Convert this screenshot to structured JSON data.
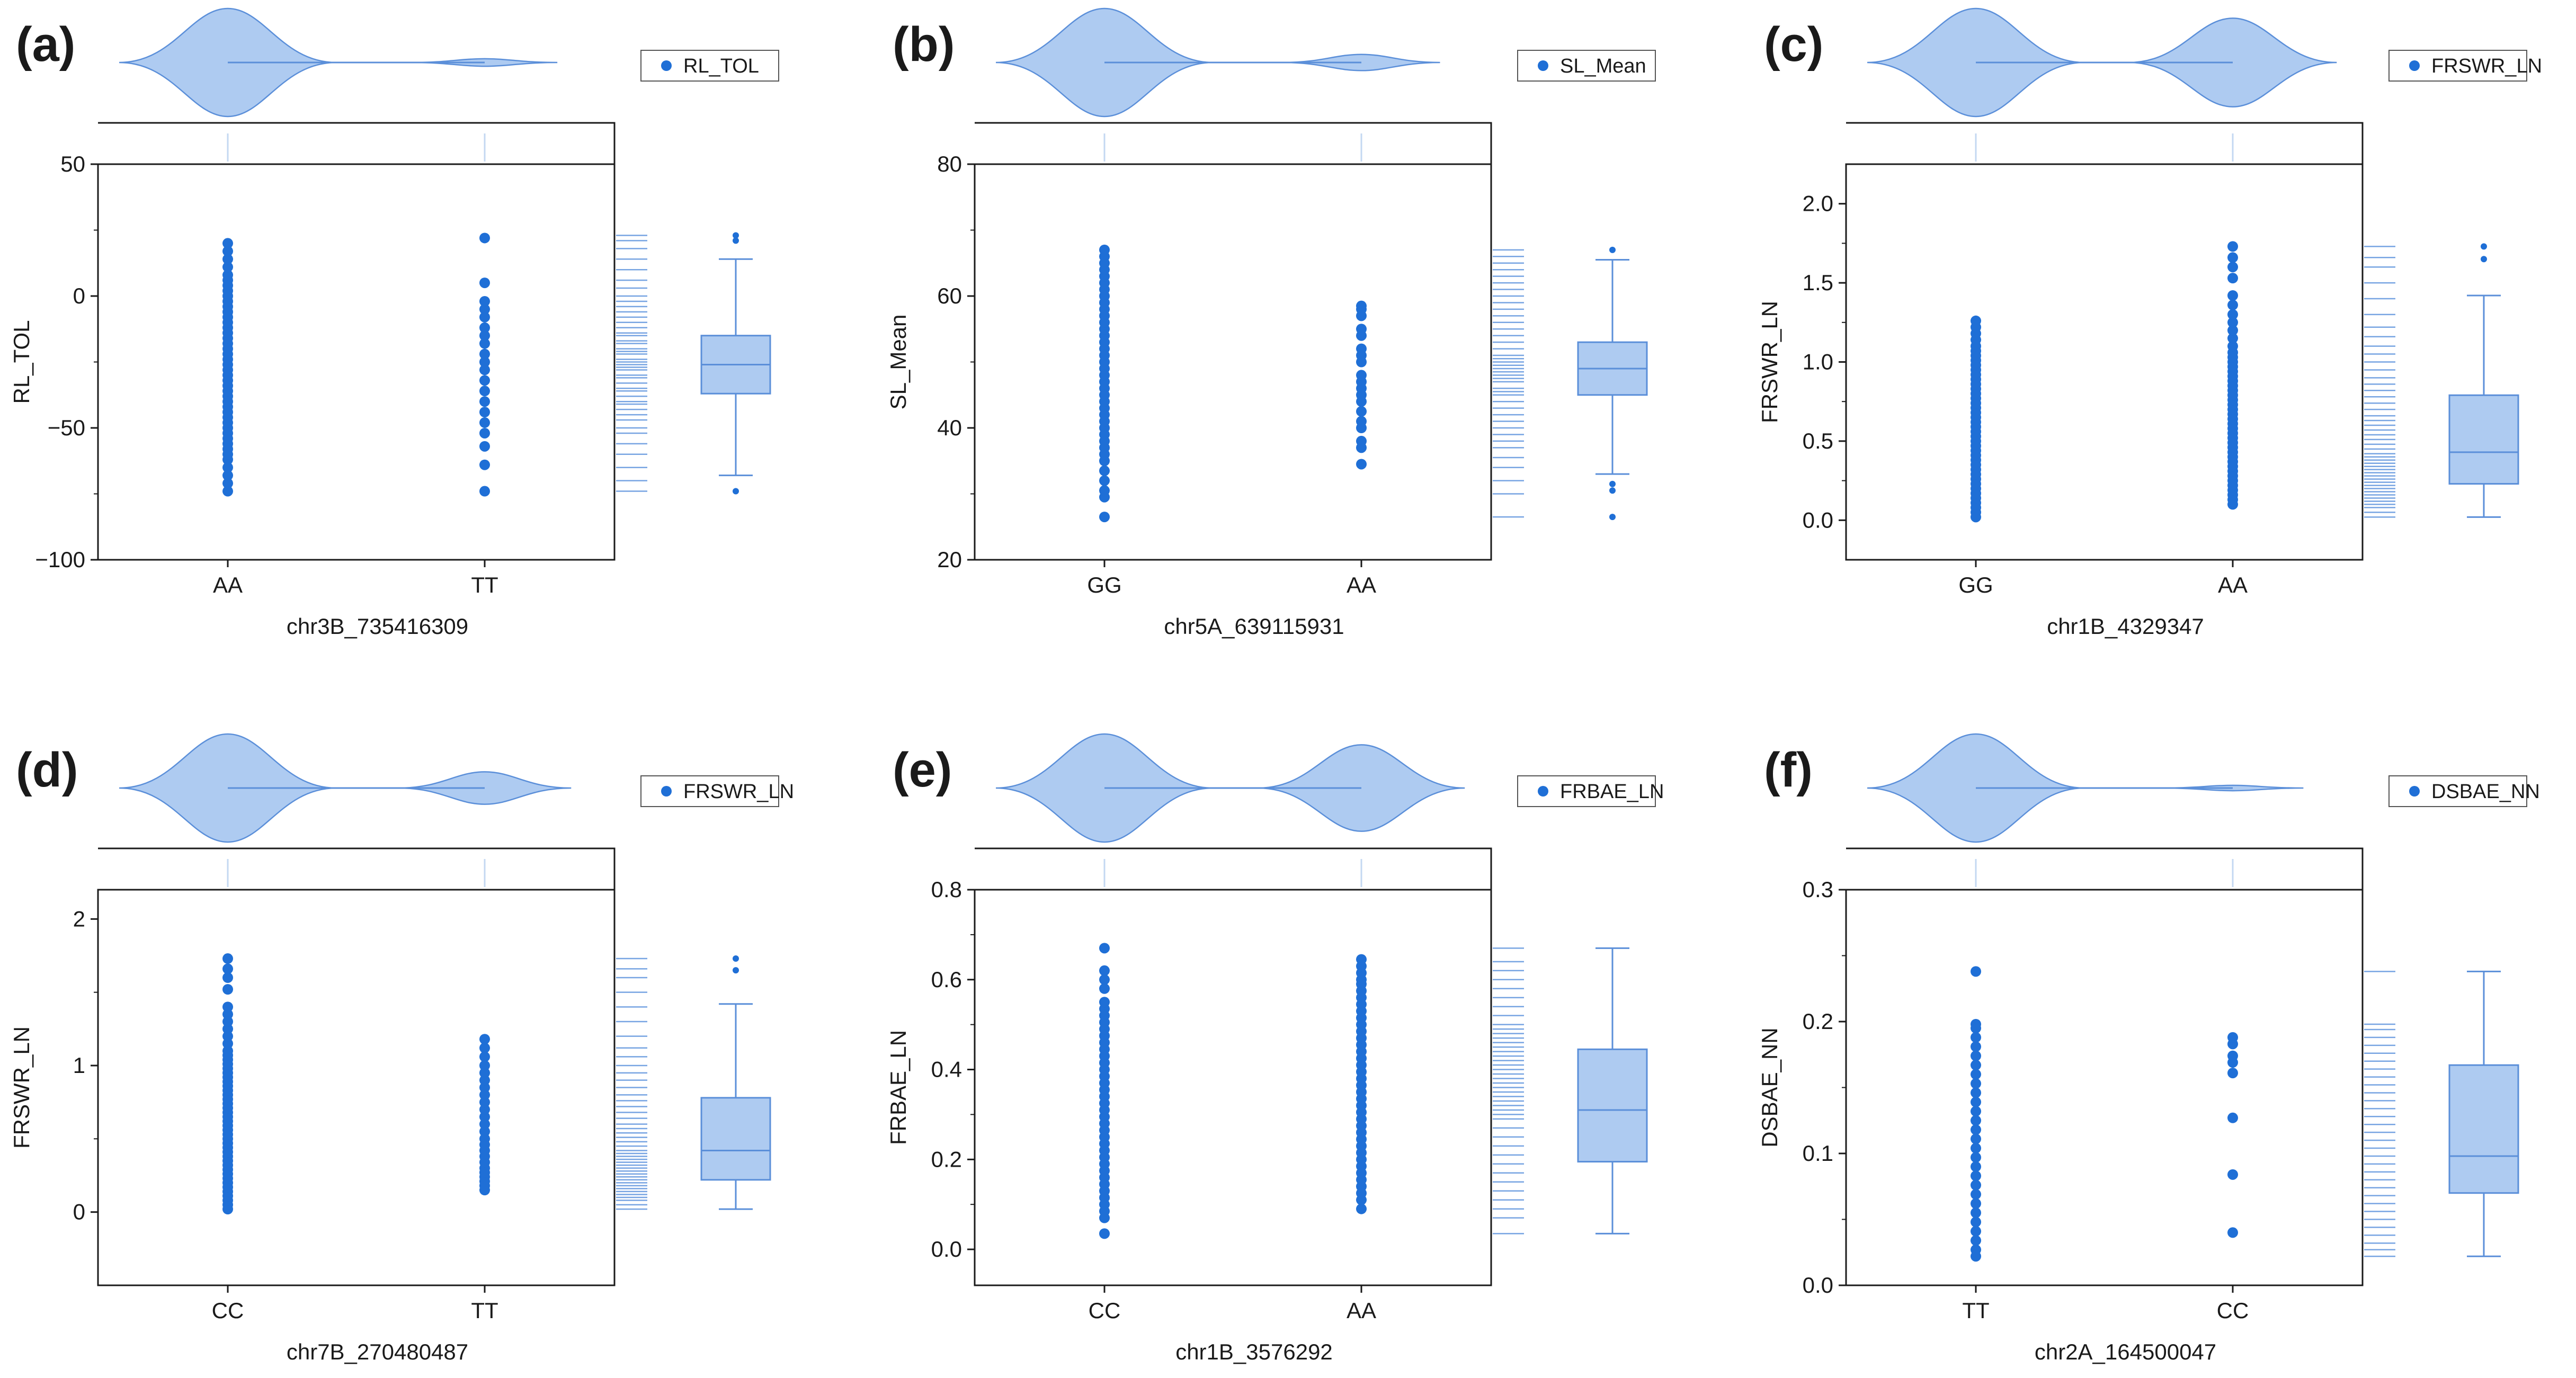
{
  "figure": {
    "colors": {
      "point": "#1f6fd6",
      "fill": "#aecbf1",
      "line": "#5b8fd9",
      "rug": "#4a86d8",
      "axis": "#1a1a1a",
      "tick_mark": "#c4d8f2"
    }
  },
  "chart_data": [
    {
      "type": "scatter",
      "panel": "(a)",
      "title": "",
      "xlabel": "chr3B_735416309",
      "ylabel": "RL_TOL",
      "legend": "RL_TOL",
      "legend_position": "top-right",
      "categories": [
        "AA",
        "TT"
      ],
      "ylim": [
        -100,
        50
      ],
      "yticks": [
        -100,
        -50,
        0,
        50
      ],
      "points": [
        [
          -74,
          -71,
          -68,
          -65,
          -62,
          -60,
          -58,
          -56,
          -54,
          -52,
          -50,
          -48,
          -46,
          -44,
          -42,
          -40,
          -38,
          -36,
          -34,
          -32,
          -30,
          -28,
          -26,
          -24,
          -22,
          -20,
          -18,
          -16,
          -14,
          -12,
          -10,
          -8,
          -6,
          -4,
          -2,
          0,
          2,
          4,
          6,
          8,
          11,
          14,
          17,
          20
        ],
        [
          -74,
          -64,
          -57,
          -52,
          -48,
          -44,
          -40,
          -36,
          -32,
          -28,
          -25,
          -22,
          -18,
          -15,
          -12,
          -8,
          -5,
          -2,
          5,
          22
        ]
      ],
      "violin": {
        "peaks": [
          1.0,
          0.07
        ]
      },
      "box": {
        "min": -68,
        "q1": -37,
        "median": -26,
        "q3": -15,
        "max": 14,
        "outliers": [
          -74,
          21,
          23
        ]
      },
      "rug": [
        -74,
        -70,
        -65,
        -60,
        -56,
        -52,
        -50,
        -47,
        -45,
        -43,
        -41,
        -40,
        -38,
        -36,
        -35,
        -33,
        -31,
        -30,
        -28,
        -27,
        -26,
        -25,
        -24,
        -22,
        -21,
        -20,
        -18,
        -17,
        -15,
        -14,
        -12,
        -10,
        -8,
        -6,
        -4,
        -2,
        0,
        3,
        6,
        10,
        14,
        18,
        21,
        23
      ]
    },
    {
      "type": "scatter",
      "panel": "(b)",
      "title": "",
      "xlabel": "chr5A_639115931",
      "ylabel": "SL_Mean",
      "legend": "SL_Mean",
      "legend_position": "top-right",
      "categories": [
        "GG",
        "AA"
      ],
      "ylim": [
        20,
        80
      ],
      "yticks": [
        20,
        40,
        60,
        80
      ],
      "points": [
        [
          26.5,
          29.5,
          30.5,
          32,
          33.5,
          35,
          36,
          37,
          38,
          39,
          40,
          41,
          42,
          43,
          44,
          45,
          46,
          47,
          48,
          49,
          50,
          51,
          52,
          53,
          54,
          55,
          56,
          57,
          58,
          59,
          60,
          61,
          62,
          63,
          64,
          65,
          66,
          67
        ],
        [
          34.5,
          37,
          38,
          40,
          41,
          42.5,
          44,
          45,
          46,
          47,
          48,
          50,
          51,
          52,
          54,
          55,
          57,
          58,
          58.5
        ]
      ],
      "violin": {
        "peaks": [
          1.0,
          0.15
        ]
      },
      "box": {
        "min": 33,
        "q1": 45,
        "median": 49,
        "q3": 53,
        "max": 65.5,
        "outliers": [
          26.5,
          30.5,
          31.5,
          67
        ]
      },
      "rug": [
        26.5,
        30,
        32,
        34,
        35.5,
        37,
        38,
        39,
        40,
        41,
        42,
        43,
        44,
        45,
        45.5,
        46,
        47,
        47.5,
        48,
        48.5,
        49,
        49.5,
        50,
        50.5,
        51,
        52,
        53,
        54,
        55,
        56,
        57,
        58,
        59,
        60,
        61,
        62,
        63,
        64,
        65,
        66,
        67
      ]
    },
    {
      "type": "scatter",
      "panel": "(c)",
      "title": "",
      "xlabel": "chr1B_4329347",
      "ylabel": "FRSWR_LN",
      "legend": "FRSWR_LN",
      "legend_position": "top-right",
      "categories": [
        "GG",
        "AA"
      ],
      "ylim": [
        -0.25,
        2.25
      ],
      "yticks": [
        0.0,
        0.5,
        1.0,
        1.5,
        2.0
      ],
      "points": [
        [
          0.02,
          0.05,
          0.08,
          0.11,
          0.14,
          0.17,
          0.2,
          0.23,
          0.26,
          0.29,
          0.32,
          0.35,
          0.38,
          0.41,
          0.44,
          0.47,
          0.5,
          0.53,
          0.56,
          0.59,
          0.62,
          0.65,
          0.68,
          0.71,
          0.74,
          0.77,
          0.8,
          0.83,
          0.86,
          0.89,
          0.92,
          0.95,
          0.98,
          1.01,
          1.04,
          1.07,
          1.1,
          1.14,
          1.18,
          1.22,
          1.26
        ],
        [
          0.1,
          0.13,
          0.16,
          0.19,
          0.22,
          0.25,
          0.28,
          0.31,
          0.34,
          0.37,
          0.4,
          0.43,
          0.46,
          0.49,
          0.52,
          0.55,
          0.58,
          0.61,
          0.64,
          0.67,
          0.7,
          0.73,
          0.76,
          0.79,
          0.82,
          0.85,
          0.88,
          0.91,
          0.94,
          0.97,
          1.0,
          1.03,
          1.06,
          1.1,
          1.15,
          1.2,
          1.25,
          1.3,
          1.36,
          1.42,
          1.53,
          1.6,
          1.66,
          1.73
        ]
      ],
      "violin": {
        "peaks": [
          1.0,
          0.82
        ]
      },
      "box": {
        "min": 0.02,
        "q1": 0.23,
        "median": 0.43,
        "q3": 0.79,
        "max": 1.42,
        "outliers": [
          1.65,
          1.73
        ]
      },
      "rug": [
        0.02,
        0.05,
        0.08,
        0.1,
        0.12,
        0.14,
        0.16,
        0.18,
        0.2,
        0.22,
        0.24,
        0.26,
        0.28,
        0.3,
        0.32,
        0.34,
        0.36,
        0.38,
        0.4,
        0.42,
        0.45,
        0.48,
        0.51,
        0.54,
        0.57,
        0.6,
        0.63,
        0.66,
        0.7,
        0.74,
        0.78,
        0.82,
        0.86,
        0.9,
        0.95,
        1.0,
        1.05,
        1.1,
        1.16,
        1.22,
        1.3,
        1.4,
        1.5,
        1.6,
        1.66,
        1.73
      ]
    },
    {
      "type": "scatter",
      "panel": "(d)",
      "title": "",
      "xlabel": "chr7B_270480487",
      "ylabel": "FRSWR_LN",
      "legend": "FRSWR_LN",
      "legend_position": "top-right",
      "categories": [
        "CC",
        "TT"
      ],
      "ylim": [
        -0.5,
        2.2
      ],
      "yticks": [
        0,
        1,
        2
      ],
      "points": [
        [
          0.02,
          0.05,
          0.08,
          0.11,
          0.14,
          0.17,
          0.2,
          0.23,
          0.26,
          0.29,
          0.32,
          0.35,
          0.38,
          0.41,
          0.44,
          0.47,
          0.5,
          0.53,
          0.56,
          0.59,
          0.62,
          0.65,
          0.68,
          0.71,
          0.74,
          0.77,
          0.8,
          0.83,
          0.86,
          0.89,
          0.92,
          0.95,
          0.98,
          1.01,
          1.04,
          1.07,
          1.1,
          1.15,
          1.2,
          1.25,
          1.3,
          1.35,
          1.4,
          1.52,
          1.6,
          1.66,
          1.73
        ],
        [
          0.15,
          0.18,
          0.21,
          0.24,
          0.27,
          0.3,
          0.34,
          0.38,
          0.42,
          0.46,
          0.5,
          0.55,
          0.6,
          0.65,
          0.7,
          0.75,
          0.8,
          0.85,
          0.9,
          0.95,
          1.0,
          1.06,
          1.12,
          1.18
        ]
      ],
      "violin": {
        "peaks": [
          1.0,
          0.3
        ]
      },
      "box": {
        "min": 0.02,
        "q1": 0.22,
        "median": 0.42,
        "q3": 0.78,
        "max": 1.42,
        "outliers": [
          1.65,
          1.73
        ]
      },
      "rug": [
        0.02,
        0.05,
        0.08,
        0.1,
        0.12,
        0.14,
        0.16,
        0.18,
        0.2,
        0.22,
        0.24,
        0.26,
        0.28,
        0.3,
        0.32,
        0.34,
        0.36,
        0.38,
        0.4,
        0.42,
        0.45,
        0.48,
        0.51,
        0.54,
        0.57,
        0.6,
        0.64,
        0.68,
        0.72,
        0.76,
        0.8,
        0.85,
        0.9,
        0.95,
        1.0,
        1.06,
        1.12,
        1.2,
        1.3,
        1.4,
        1.5,
        1.6,
        1.66,
        1.73
      ]
    },
    {
      "type": "scatter",
      "panel": "(e)",
      "title": "",
      "xlabel": "chr1B_3576292",
      "ylabel": "FRBAE_LN",
      "legend": "FRBAE_LN",
      "legend_position": "top-right",
      "categories": [
        "CC",
        "AA"
      ],
      "ylim": [
        -0.08,
        0.8
      ],
      "yticks": [
        0.0,
        0.2,
        0.4,
        0.6,
        0.8
      ],
      "points": [
        [
          0.035,
          0.07,
          0.085,
          0.1,
          0.115,
          0.13,
          0.145,
          0.16,
          0.175,
          0.19,
          0.205,
          0.22,
          0.235,
          0.25,
          0.265,
          0.28,
          0.295,
          0.31,
          0.325,
          0.34,
          0.355,
          0.37,
          0.385,
          0.4,
          0.415,
          0.43,
          0.445,
          0.46,
          0.475,
          0.49,
          0.505,
          0.52,
          0.535,
          0.55,
          0.58,
          0.6,
          0.62,
          0.67
        ],
        [
          0.09,
          0.11,
          0.125,
          0.14,
          0.155,
          0.17,
          0.185,
          0.2,
          0.215,
          0.23,
          0.245,
          0.26,
          0.275,
          0.29,
          0.305,
          0.32,
          0.335,
          0.35,
          0.365,
          0.38,
          0.395,
          0.41,
          0.425,
          0.44,
          0.455,
          0.47,
          0.485,
          0.5,
          0.515,
          0.53,
          0.545,
          0.56,
          0.575,
          0.59,
          0.6,
          0.615,
          0.63,
          0.645
        ]
      ],
      "violin": {
        "peaks": [
          1.0,
          0.8
        ]
      },
      "box": {
        "min": 0.035,
        "q1": 0.195,
        "median": 0.31,
        "q3": 0.445,
        "max": 0.67,
        "outliers": []
      },
      "rug": [
        0.035,
        0.07,
        0.09,
        0.11,
        0.13,
        0.15,
        0.17,
        0.19,
        0.21,
        0.23,
        0.25,
        0.27,
        0.29,
        0.3,
        0.31,
        0.32,
        0.33,
        0.34,
        0.35,
        0.36,
        0.37,
        0.38,
        0.39,
        0.4,
        0.41,
        0.42,
        0.43,
        0.44,
        0.45,
        0.46,
        0.47,
        0.48,
        0.49,
        0.5,
        0.52,
        0.54,
        0.56,
        0.58,
        0.6,
        0.62,
        0.64,
        0.67
      ]
    },
    {
      "type": "scatter",
      "panel": "(f)",
      "title": "",
      "xlabel": "chr2A_164500047",
      "ylabel": "DSBAE_NN",
      "legend": "DSBAE_NN",
      "legend_position": "top-right",
      "categories": [
        "TT",
        "CC"
      ],
      "ylim": [
        0.0,
        0.3
      ],
      "yticks": [
        0.0,
        0.1,
        0.2,
        0.3
      ],
      "points": [
        [
          0.022,
          0.027,
          0.034,
          0.041,
          0.048,
          0.055,
          0.062,
          0.069,
          0.076,
          0.083,
          0.09,
          0.097,
          0.104,
          0.111,
          0.118,
          0.125,
          0.132,
          0.139,
          0.146,
          0.153,
          0.16,
          0.167,
          0.174,
          0.181,
          0.188,
          0.195,
          0.198,
          0.238
        ],
        [
          0.04,
          0.084,
          0.127,
          0.161,
          0.169,
          0.174,
          0.183,
          0.188
        ]
      ],
      "violin": {
        "peaks": [
          1.0,
          0.05
        ]
      },
      "box": {
        "min": 0.022,
        "q1": 0.07,
        "median": 0.098,
        "q3": 0.167,
        "max": 0.238,
        "outliers": []
      },
      "rug": [
        0.022,
        0.027,
        0.032,
        0.038,
        0.044,
        0.05,
        0.056,
        0.062,
        0.068,
        0.074,
        0.08,
        0.086,
        0.092,
        0.098,
        0.104,
        0.11,
        0.116,
        0.122,
        0.128,
        0.134,
        0.14,
        0.146,
        0.152,
        0.158,
        0.164,
        0.17,
        0.176,
        0.182,
        0.188,
        0.194,
        0.198,
        0.238
      ]
    }
  ]
}
